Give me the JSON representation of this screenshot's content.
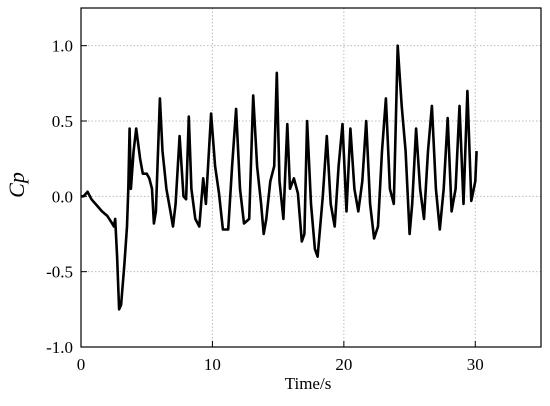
{
  "chart_data": {
    "type": "line",
    "xlabel": "Time/s",
    "ylabel": "Cp",
    "x": [
      0,
      0.2,
      0.5,
      0.8,
      1.2,
      1.6,
      2.0,
      2.3,
      2.5,
      2.6,
      2.75,
      2.9,
      3.05,
      3.3,
      3.5,
      3.6,
      3.7,
      3.8,
      4.0,
      4.2,
      4.5,
      4.7,
      5.0,
      5.2,
      5.4,
      5.55,
      5.7,
      6.0,
      6.2,
      6.5,
      6.8,
      7.0,
      7.2,
      7.5,
      7.8,
      8.0,
      8.2,
      8.4,
      8.7,
      9.0,
      9.3,
      9.5,
      9.9,
      10.2,
      10.5,
      10.8,
      11.2,
      11.5,
      11.8,
      12.1,
      12.4,
      12.8,
      13.1,
      13.4,
      13.7,
      13.9,
      14.1,
      14.4,
      14.7,
      14.9,
      15.1,
      15.4,
      15.7,
      15.9,
      16.2,
      16.5,
      16.8,
      17.0,
      17.2,
      17.5,
      17.8,
      18.0,
      18.4,
      18.7,
      19.0,
      19.3,
      19.6,
      19.9,
      20.2,
      20.5,
      20.8,
      21.1,
      21.4,
      21.7,
      22.0,
      22.3,
      22.6,
      22.9,
      23.2,
      23.5,
      23.8,
      24.1,
      24.4,
      24.7,
      25.0,
      25.2,
      25.5,
      25.8,
      26.1,
      26.4,
      26.7,
      27.0,
      27.3,
      27.6,
      27.9,
      28.2,
      28.5,
      28.8,
      29.1,
      29.4,
      29.7,
      30.0,
      30.1
    ],
    "series": [
      {
        "color": "#000000",
        "values": [
          0,
          0.0,
          0.03,
          -0.02,
          -0.06,
          -0.1,
          -0.13,
          -0.17,
          -0.2,
          -0.15,
          -0.4,
          -0.75,
          -0.72,
          -0.45,
          -0.2,
          0.05,
          0.45,
          0.05,
          0.3,
          0.45,
          0.25,
          0.15,
          0.15,
          0.12,
          0.05,
          -0.18,
          -0.1,
          0.65,
          0.3,
          0.05,
          -0.1,
          -0.2,
          -0.05,
          0.4,
          0.0,
          -0.02,
          0.53,
          0.05,
          -0.15,
          -0.2,
          0.12,
          -0.05,
          0.55,
          0.2,
          0.02,
          -0.22,
          -0.22,
          0.2,
          0.58,
          0.05,
          -0.18,
          -0.15,
          0.67,
          0.2,
          -0.05,
          -0.25,
          -0.15,
          0.1,
          0.2,
          0.82,
          0.1,
          -0.15,
          0.48,
          0.05,
          0.12,
          0.02,
          -0.3,
          -0.25,
          0.5,
          -0.05,
          -0.35,
          -0.4,
          0.0,
          0.4,
          -0.05,
          -0.2,
          0.2,
          0.48,
          -0.1,
          0.45,
          0.05,
          -0.1,
          0.1,
          0.5,
          -0.05,
          -0.28,
          -0.2,
          0.3,
          0.65,
          0.05,
          -0.05,
          1.0,
          0.6,
          0.3,
          -0.25,
          -0.05,
          0.45,
          0.05,
          -0.15,
          0.3,
          0.6,
          0.05,
          -0.22,
          0.05,
          0.52,
          -0.1,
          0.05,
          0.6,
          -0.05,
          0.7,
          -0.03,
          0.1,
          0.3
        ]
      }
    ],
    "xlim": [
      0,
      35
    ],
    "xticks": [
      0,
      10,
      20,
      30
    ],
    "ylim": [
      -1,
      1.25
    ],
    "yticks": [
      {
        "value": -1,
        "label": "-1.0"
      },
      -0.5,
      {
        "value": 0,
        "label": "0.0"
      },
      0.5,
      {
        "value": 1,
        "label": "1.0"
      }
    ],
    "grid": true
  }
}
